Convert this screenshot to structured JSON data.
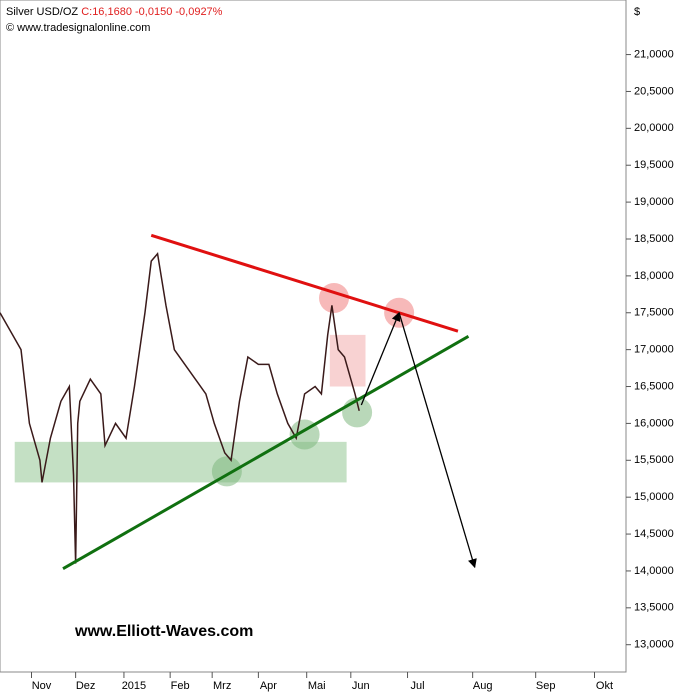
{
  "chart_data": {
    "type": "line",
    "title": "Silver USD/OZ",
    "quote": "C:16,1680 -0,0150 -0,0927%",
    "source": "© www.tradesignalonline.com",
    "unit_label": "$",
    "watermark": "www.Elliott-Waves.com",
    "series": [
      {
        "name": "Silver USD/OZ",
        "color": "#3a1a1a",
        "x": [
          0,
          10,
          14,
          19,
          20,
          24,
          29,
          33,
          35,
          36,
          37,
          38,
          43,
          48,
          50,
          55,
          60,
          64,
          69,
          72,
          75,
          79,
          83,
          88,
          93,
          98,
          102,
          107,
          110,
          114,
          118,
          123,
          128,
          132,
          137,
          141,
          145,
          150,
          153,
          156,
          158,
          161,
          164,
          167,
          169,
          171
        ],
        "values": [
          17.5,
          17.0,
          16.0,
          15.5,
          15.2,
          15.8,
          16.3,
          16.5,
          15.3,
          14.1,
          16.0,
          16.3,
          16.6,
          16.4,
          15.7,
          16.0,
          15.8,
          16.5,
          17.5,
          18.2,
          18.3,
          17.6,
          17.0,
          16.8,
          16.6,
          16.4,
          16.0,
          15.6,
          15.5,
          16.3,
          16.9,
          16.8,
          16.8,
          16.4,
          16.0,
          15.8,
          16.4,
          16.5,
          16.4,
          17.2,
          17.6,
          17.0,
          16.9,
          16.6,
          16.4,
          16.17
        ]
      }
    ],
    "xlim": [
      0,
      298
    ],
    "xticks": [
      {
        "value": 15,
        "label": "Nov"
      },
      {
        "value": 36,
        "label": "Dez"
      },
      {
        "value": 59,
        "label": "2015"
      },
      {
        "value": 81,
        "label": "Feb"
      },
      {
        "value": 101,
        "label": "Mrz"
      },
      {
        "value": 123,
        "label": "Apr"
      },
      {
        "value": 146,
        "label": "Mai"
      },
      {
        "value": 167,
        "label": "Jun"
      },
      {
        "value": 194,
        "label": "Jul"
      },
      {
        "value": 225,
        "label": "Aug"
      },
      {
        "value": 255,
        "label": "Sep"
      },
      {
        "value": 283,
        "label": "Okt"
      }
    ],
    "ylim": [
      12.63,
      21.55
    ],
    "yticks": [
      {
        "value": 13,
        "label": "13,0000"
      },
      {
        "value": 13.5,
        "label": "13,5000"
      },
      {
        "value": 14,
        "label": "14,0000"
      },
      {
        "value": 14.5,
        "label": "14,5000"
      },
      {
        "value": 15,
        "label": "15,0000"
      },
      {
        "value": 15.5,
        "label": "15,5000"
      },
      {
        "value": 16,
        "label": "16,0000"
      },
      {
        "value": 16.5,
        "label": "16,5000"
      },
      {
        "value": 17,
        "label": "17,0000"
      },
      {
        "value": 17.5,
        "label": "17,5000"
      },
      {
        "value": 18,
        "label": "18,0000"
      },
      {
        "value": 18.5,
        "label": "18,5000"
      },
      {
        "value": 19,
        "label": "19,0000"
      },
      {
        "value": 19.5,
        "label": "19,5000"
      },
      {
        "value": 20,
        "label": "20,0000"
      },
      {
        "value": 20.5,
        "label": "20,5000"
      },
      {
        "value": 21,
        "label": "21,0000"
      }
    ],
    "annotations": {
      "zones": [
        {
          "color": "#9ccc9c",
          "x": [
            7,
            165
          ],
          "y": [
            15.2,
            15.75
          ]
        },
        {
          "color": "#f4b4b4",
          "x": [
            157,
            174
          ],
          "y": [
            16.5,
            17.2
          ]
        }
      ],
      "lines": [
        {
          "color": "#e01010",
          "x": [
            72,
            218
          ],
          "y": [
            18.55,
            17.25
          ]
        },
        {
          "color": "#107010",
          "x": [
            30,
            223
          ],
          "y": [
            14.03,
            17.18
          ]
        }
      ],
      "arrows": [
        {
          "color": "#000000",
          "x": [
            172,
            190,
            226
          ],
          "y": [
            16.25,
            17.5,
            14.05
          ]
        }
      ],
      "circles": [
        {
          "color": "#f08080",
          "x": 159,
          "y": 17.7
        },
        {
          "color": "#f08080",
          "x": 190,
          "y": 17.5
        },
        {
          "color": "#80b880",
          "x": 108,
          "y": 15.35
        },
        {
          "color": "#80b880",
          "x": 145,
          "y": 15.85
        },
        {
          "color": "#80b880",
          "x": 170,
          "y": 16.15
        }
      ]
    }
  }
}
